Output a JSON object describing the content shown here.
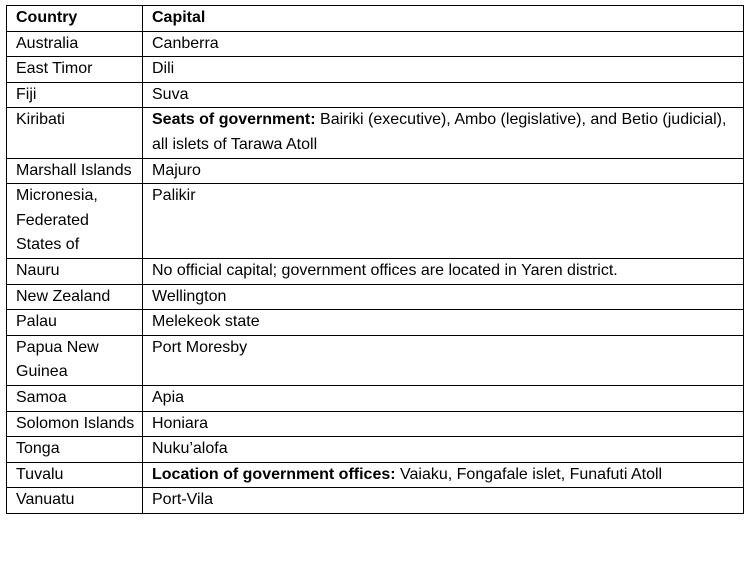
{
  "header": {
    "country": "Country",
    "capital": "Capital"
  },
  "rows": [
    {
      "country": "Australia",
      "capital_label": "",
      "capital": "Canberra"
    },
    {
      "country": "East Timor",
      "capital_label": "",
      "capital": "Dili"
    },
    {
      "country": "Fiji",
      "capital_label": "",
      "capital": "Suva"
    },
    {
      "country": "Kiribati",
      "capital_label": "Seats of government:",
      "capital": "Bairiki (executive), Ambo (legislative), and Betio (judicial), all islets of Tarawa Atoll"
    },
    {
      "country": "Marshall Islands",
      "capital_label": "",
      "capital": "Majuro"
    },
    {
      "country": "Micronesia, Federated States of",
      "capital_label": "",
      "capital": "Palikir"
    },
    {
      "country": "Nauru",
      "capital_label": "",
      "capital": "No official capital; government offices are located in Yaren district."
    },
    {
      "country": "New Zealand",
      "capital_label": "",
      "capital": "Wellington"
    },
    {
      "country": "Palau",
      "capital_label": "",
      "capital": "Melekeok state"
    },
    {
      "country": "Papua New Guinea",
      "capital_label": "",
      "capital": "Port Moresby"
    },
    {
      "country": "Samoa",
      "capital_label": "",
      "capital": "Apia"
    },
    {
      "country": "Solomon Islands",
      "capital_label": "",
      "capital": "Honiara"
    },
    {
      "country": "Tonga",
      "capital_label": "",
      "capital": "Nuku’alofa"
    },
    {
      "country": "Tuvalu",
      "capital_label": "Location of government offices:",
      "capital": "Vaiaku, Fongafale islet, Funafuti Atoll"
    },
    {
      "country": "Vanuatu",
      "capital_label": "",
      "capital": "Port-Vila"
    }
  ]
}
